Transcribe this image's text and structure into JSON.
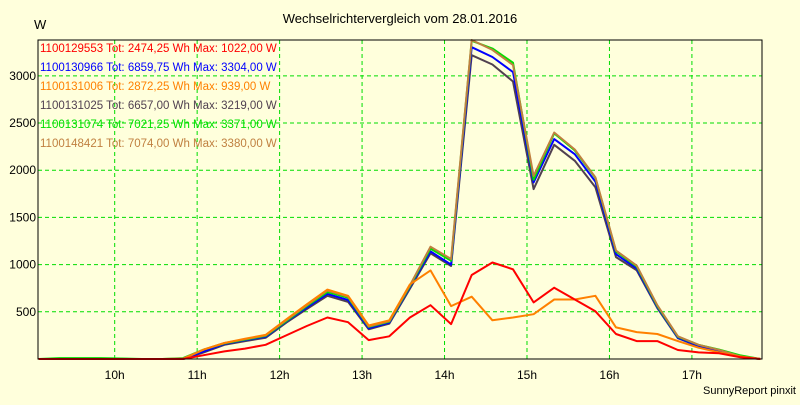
{
  "chart_data": {
    "type": "line",
    "title": "Wechselrichtervergleich vom 28.01.2016",
    "ylabel": "W",
    "xlabel": "",
    "credit": "SunnyReport pinxit",
    "ylim": [
      0,
      3380
    ],
    "xlim": [
      9.07,
      17.85
    ],
    "grid": true,
    "legend_placement": "top-left",
    "y_ticks": [
      500,
      1000,
      1500,
      2000,
      2500,
      3000
    ],
    "y_tick_labels": [
      "500",
      "1000",
      "1500",
      "2000",
      "2500",
      "3000"
    ],
    "x_ticks": [
      10,
      11,
      12,
      13,
      14,
      15,
      16,
      17
    ],
    "x_tick_labels": [
      "10h",
      "11h",
      "12h",
      "13h",
      "14h",
      "15h",
      "16h",
      "17h"
    ],
    "x": [
      9.08,
      9.33,
      9.58,
      9.83,
      10.08,
      10.33,
      10.58,
      10.83,
      11.08,
      11.33,
      11.58,
      11.83,
      12.08,
      12.33,
      12.58,
      12.83,
      13.08,
      13.33,
      13.58,
      13.83,
      14.08,
      14.33,
      14.58,
      14.83,
      15.08,
      15.33,
      15.58,
      15.83,
      16.08,
      16.33,
      16.58,
      16.83,
      17.08,
      17.33,
      17.58,
      17.83
    ],
    "series": [
      {
        "name": "1100129553",
        "legend": "1100129553 Tot: 2474,25 Wh Max: 1022,00 W",
        "color": "#ff0000",
        "values": [
          0,
          0,
          0,
          0,
          0,
          0,
          0,
          0,
          40,
          80,
          110,
          150,
          250,
          350,
          440,
          390,
          200,
          240,
          440,
          570,
          370,
          890,
          1022,
          950,
          600,
          755,
          630,
          505,
          265,
          190,
          190,
          95,
          70,
          60,
          20,
          0
        ]
      },
      {
        "name": "1100130966",
        "legend": "1100130966 Tot: 6859,75 Wh Max: 3304,00 W",
        "color": "#0000ff",
        "values": [
          0,
          0,
          0,
          0,
          0,
          0,
          0,
          0,
          80,
          160,
          200,
          235,
          395,
          545,
          690,
          625,
          325,
          385,
          760,
          1140,
          1000,
          3304,
          3200,
          3040,
          1870,
          2330,
          2170,
          1880,
          1110,
          960,
          550,
          225,
          140,
          90,
          30,
          0
        ]
      },
      {
        "name": "1100131006",
        "legend": "1100131006 Tot: 2872,25 Wh Max: 939,00 W",
        "color": "#ff8000",
        "values": [
          0,
          0,
          0,
          0,
          0,
          0,
          0,
          0,
          100,
          170,
          215,
          255,
          420,
          580,
          735,
          670,
          355,
          410,
          790,
          939,
          560,
          660,
          410,
          440,
          475,
          630,
          630,
          670,
          335,
          285,
          265,
          190,
          120,
          70,
          25,
          0
        ]
      },
      {
        "name": "1100131025",
        "legend": "1100131025 Tot: 6657,00 Wh Max: 3219,00 W",
        "color": "#504050",
        "values": [
          0,
          0,
          0,
          0,
          0,
          0,
          0,
          0,
          70,
          150,
          190,
          225,
          385,
          530,
          670,
          605,
          315,
          375,
          745,
          1120,
          985,
          3219,
          3120,
          2940,
          1800,
          2270,
          2100,
          1820,
          1080,
          940,
          540,
          220,
          135,
          85,
          25,
          0
        ]
      },
      {
        "name": "1100131074",
        "legend": "1100131074 Tot: 7021,25 Wh Max: 3371,00 W",
        "color": "#00e000",
        "values": [
          0,
          10,
          10,
          10,
          5,
          0,
          0,
          10,
          100,
          165,
          205,
          245,
          400,
          560,
          710,
          650,
          340,
          395,
          770,
          1170,
          1040,
          3371,
          3290,
          3140,
          1900,
          2390,
          2210,
          1920,
          1140,
          980,
          560,
          235,
          150,
          100,
          40,
          0
        ]
      },
      {
        "name": "1100148421",
        "legend": "1100148421 Tot: 7074,00 Wh Max: 3380,00 W",
        "color": "#c08040",
        "values": [
          0,
          0,
          0,
          0,
          0,
          0,
          0,
          5,
          100,
          170,
          210,
          250,
          410,
          570,
          725,
          660,
          345,
          400,
          780,
          1190,
          1060,
          3380,
          3275,
          3115,
          1940,
          2400,
          2220,
          1925,
          1150,
          990,
          570,
          240,
          150,
          95,
          30,
          0
        ]
      }
    ]
  }
}
